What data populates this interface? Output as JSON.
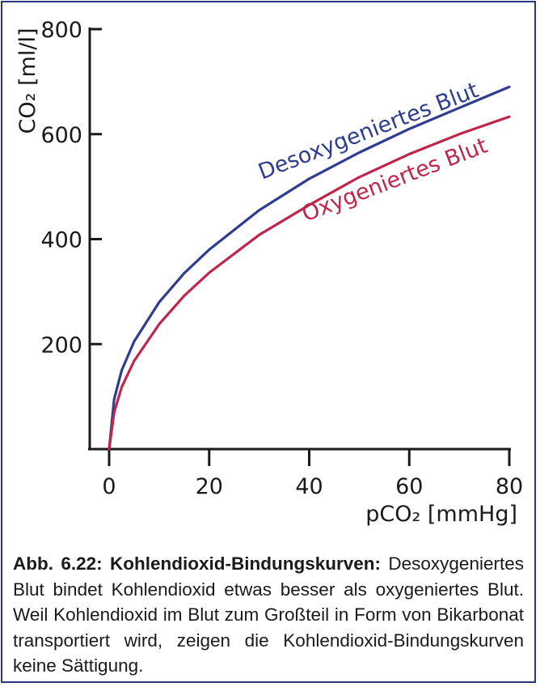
{
  "chart_data": {
    "type": "line",
    "xlabel": "pCO₂ [mmHg]",
    "ylabel": "CO₂ [ml/l]",
    "xlim": [
      0,
      80
    ],
    "ylim": [
      0,
      800
    ],
    "xticks": [
      0,
      20,
      40,
      60,
      80
    ],
    "yticks": [
      200,
      400,
      600,
      800
    ],
    "grid": false,
    "series": [
      {
        "name": "Desoxygeniertes Blut",
        "color": "#2e3d8f",
        "x": [
          0,
          1,
          2.5,
          5,
          10,
          15,
          20,
          30,
          40,
          50,
          60,
          70,
          80
        ],
        "y": [
          0,
          95,
          150,
          205,
          280,
          335,
          380,
          455,
          515,
          565,
          610,
          650,
          690
        ]
      },
      {
        "name": "Oxygeniertes Blut",
        "color": "#c0264a",
        "x": [
          0,
          1,
          2.5,
          5,
          10,
          15,
          20,
          30,
          40,
          50,
          60,
          70,
          80
        ],
        "y": [
          0,
          70,
          118,
          168,
          238,
          292,
          336,
          408,
          465,
          518,
          562,
          600,
          633
        ]
      }
    ]
  },
  "caption": {
    "label": "Abb. 6.22: Kohlendioxid-Bindungskurven:",
    "text": "Desoxygeniertes Blut bindet Kohlendioxid etwas besser als oxygeniertes Blut. Weil Kohlendioxid im Blut zum Großteil in Form von Bikarbonat transportiert wird, zeigen die Kohlendioxid-Bindungskurven keine Sättigung."
  },
  "colors": {
    "axis": "#1a1a1a",
    "border": "#2b3580"
  }
}
